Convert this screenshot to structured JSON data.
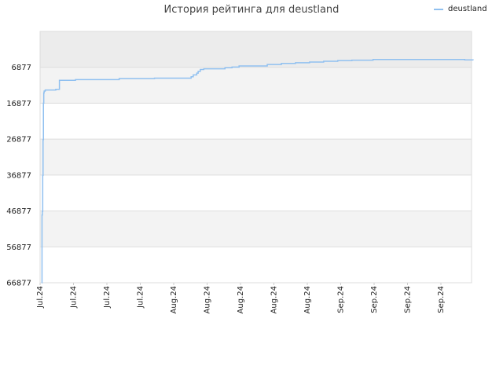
{
  "chart_data": {
    "type": "line",
    "title": "История рейтинга для deustland",
    "xlabel": "",
    "ylabel": "",
    "y_inverted": true,
    "ylim": [
      66877,
      -3123
    ],
    "y_ticks": [
      6877,
      16877,
      26877,
      36877,
      46877,
      56877,
      66877
    ],
    "x_tick_labels": [
      "Jul.24",
      "Jul.24",
      "Jul.24",
      "Jul.24",
      "Aug.24",
      "Aug.24",
      "Aug.24",
      "Aug.24",
      "Aug.24",
      "Sep.24",
      "Sep.24",
      "Sep.24",
      "Sep.24"
    ],
    "legend_position": "top-right",
    "grid": true,
    "series": [
      {
        "name": "deustland",
        "color": "#90c0f0",
        "points": [
          [
            0.0,
            66877
          ],
          [
            0.5,
            48000
          ],
          [
            1.0,
            47000
          ],
          [
            1.5,
            37000
          ],
          [
            2.0,
            27000
          ],
          [
            2.5,
            16877
          ],
          [
            3.0,
            14000
          ],
          [
            3.5,
            13500
          ],
          [
            5.0,
            13200
          ],
          [
            10.0,
            13200
          ],
          [
            20.0,
            13000
          ],
          [
            25.0,
            13000
          ],
          [
            25.2,
            10500
          ],
          [
            40.0,
            10500
          ],
          [
            48.0,
            10300
          ],
          [
            80.0,
            10300
          ],
          [
            100.0,
            10300
          ],
          [
            110.0,
            10000
          ],
          [
            150.0,
            10000
          ],
          [
            160.0,
            9900
          ],
          [
            190.0,
            9900
          ],
          [
            205.0,
            9900
          ],
          [
            212.0,
            9500
          ],
          [
            215.0,
            9000
          ],
          [
            220.0,
            8500
          ],
          [
            222.0,
            8000
          ],
          [
            225.0,
            7500
          ],
          [
            230.0,
            7300
          ],
          [
            240.0,
            7300
          ],
          [
            260.0,
            7000
          ],
          [
            270.0,
            6800
          ],
          [
            280.0,
            6500
          ],
          [
            300.0,
            6500
          ],
          [
            320.0,
            6100
          ],
          [
            340.0,
            5800
          ],
          [
            360.0,
            5600
          ],
          [
            380.0,
            5400
          ],
          [
            400.0,
            5200
          ],
          [
            420.0,
            5000
          ],
          [
            440.0,
            4900
          ],
          [
            470.0,
            4700
          ],
          [
            520.0,
            4700
          ],
          [
            560.0,
            4700
          ],
          [
            600.0,
            4800
          ],
          [
            612.0,
            4900
          ]
        ]
      }
    ]
  }
}
